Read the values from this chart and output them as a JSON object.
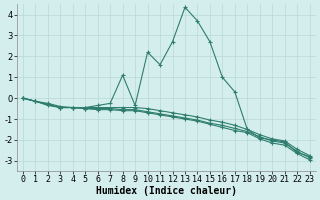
{
  "xlabel": "Humidex (Indice chaleur)",
  "background_color": "#d4eeed",
  "grid_color": "#b8d8d4",
  "line_color": "#2e7d6e",
  "ylim": [
    -3.5,
    4.5
  ],
  "xlim": [
    -0.5,
    23.5
  ],
  "yticks": [
    -3,
    -2,
    -1,
    0,
    1,
    2,
    3,
    4
  ],
  "xticks": [
    0,
    1,
    2,
    3,
    4,
    5,
    6,
    7,
    8,
    9,
    10,
    11,
    12,
    13,
    14,
    15,
    16,
    17,
    18,
    19,
    20,
    21,
    22,
    23
  ],
  "lines": [
    [
      0.0,
      -0.15,
      -0.25,
      -0.4,
      -0.45,
      -0.45,
      -0.35,
      -0.25,
      1.1,
      -0.35,
      2.2,
      1.6,
      2.7,
      4.35,
      3.7,
      2.7,
      1.0,
      0.3,
      -1.5,
      -1.9,
      -2.0,
      -2.1,
      -2.6,
      -2.8
    ],
    [
      0.0,
      -0.15,
      -0.3,
      -0.45,
      -0.45,
      -0.45,
      -0.45,
      -0.45,
      -0.45,
      -0.45,
      -0.5,
      -0.6,
      -0.7,
      -0.8,
      -0.9,
      -1.05,
      -1.15,
      -1.3,
      -1.5,
      -1.75,
      -1.95,
      -2.05,
      -2.45,
      -2.75
    ],
    [
      0.0,
      -0.15,
      -0.3,
      -0.45,
      -0.45,
      -0.5,
      -0.5,
      -0.5,
      -0.55,
      -0.55,
      -0.65,
      -0.75,
      -0.85,
      -0.95,
      -1.05,
      -1.2,
      -1.3,
      -1.45,
      -1.6,
      -1.85,
      -2.05,
      -2.15,
      -2.55,
      -2.85
    ],
    [
      0.0,
      -0.15,
      -0.35,
      -0.45,
      -0.45,
      -0.5,
      -0.55,
      -0.55,
      -0.6,
      -0.6,
      -0.7,
      -0.8,
      -0.9,
      -1.0,
      -1.1,
      -1.25,
      -1.4,
      -1.55,
      -1.65,
      -1.95,
      -2.15,
      -2.25,
      -2.65,
      -2.95
    ]
  ],
  "marker": "+",
  "markersize": 3,
  "linewidth": 0.8,
  "xlabel_fontsize": 7,
  "tick_fontsize": 6
}
